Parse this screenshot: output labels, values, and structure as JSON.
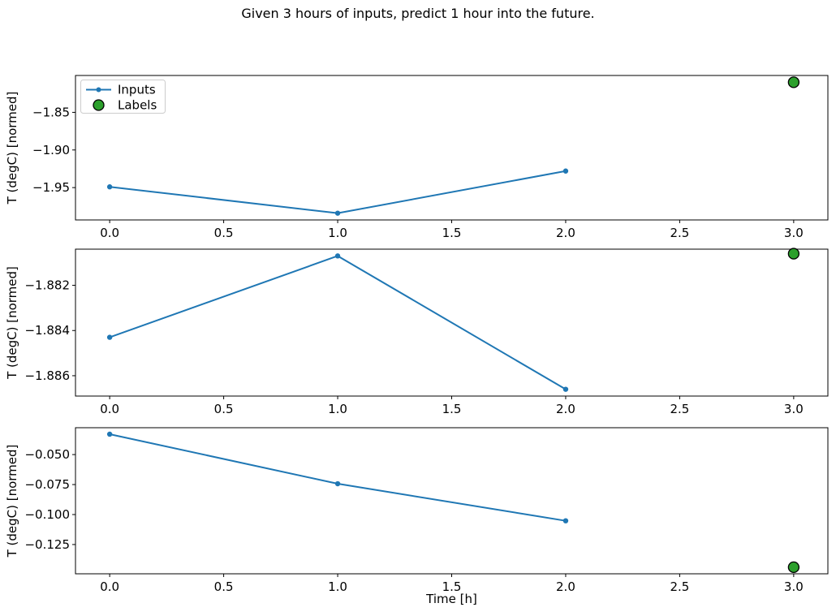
{
  "figure": {
    "title": "Given 3 hours of inputs, predict 1 hour into the future."
  },
  "xaxis": {
    "label": "Time [h]",
    "ticks": [
      {
        "value": 0.0,
        "label": "0.0"
      },
      {
        "value": 0.5,
        "label": "0.5"
      },
      {
        "value": 1.0,
        "label": "1.0"
      },
      {
        "value": 1.5,
        "label": "1.5"
      },
      {
        "value": 2.0,
        "label": "2.0"
      },
      {
        "value": 2.5,
        "label": "2.5"
      },
      {
        "value": 3.0,
        "label": "3.0"
      }
    ]
  },
  "legend": {
    "position": "upper-left-of-first-subplot",
    "entries": [
      {
        "label": "Inputs",
        "marker": "line-with-dot",
        "color": "#1f77b4"
      },
      {
        "label": "Labels",
        "marker": "circle",
        "color": "#2ca02c",
        "edge_color": "#000000"
      }
    ]
  },
  "colors": {
    "inputs_line": "#1f77b4",
    "labels_marker": "#2ca02c",
    "marker_edge": "#000000",
    "axis": "#000000",
    "legend_border": "#cccccc"
  },
  "chart_data": [
    {
      "type": "line",
      "ylabel": "T (degC) [normed]",
      "x": [
        0,
        1,
        2
      ],
      "series": [
        {
          "name": "Inputs",
          "values": [
            -1.949,
            -1.984,
            -1.928
          ]
        }
      ],
      "label_point": {
        "name": "Labels",
        "x": 3,
        "y": -1.81
      },
      "xlim": [
        -0.15,
        3.15
      ],
      "ylim": [
        -1.993,
        -1.801
      ],
      "yticks": [
        {
          "value": -1.95,
          "label": "−1.95"
        },
        {
          "value": -1.9,
          "label": "−1.90"
        },
        {
          "value": -1.85,
          "label": "−1.85"
        }
      ],
      "grid": false,
      "legend": true
    },
    {
      "type": "line",
      "ylabel": "T (degC) [normed]",
      "x": [
        0,
        1,
        2
      ],
      "series": [
        {
          "name": "Inputs",
          "values": [
            -1.8843,
            -1.8807,
            -1.8866
          ]
        }
      ],
      "label_point": {
        "name": "Labels",
        "x": 3,
        "y": -1.8806
      },
      "xlim": [
        -0.15,
        3.15
      ],
      "ylim": [
        -1.8869,
        -1.8804
      ],
      "yticks": [
        {
          "value": -1.886,
          "label": "−1.886"
        },
        {
          "value": -1.884,
          "label": "−1.884"
        },
        {
          "value": -1.882,
          "label": "−1.882"
        }
      ],
      "grid": false,
      "legend": false
    },
    {
      "type": "line",
      "ylabel": "T (degC) [normed]",
      "x": [
        0,
        1,
        2
      ],
      "series": [
        {
          "name": "Inputs",
          "values": [
            -0.033,
            -0.0743,
            -0.1052
          ]
        }
      ],
      "label_point": {
        "name": "Labels",
        "x": 3,
        "y": -0.1439
      },
      "xlim": [
        -0.15,
        3.15
      ],
      "ylim": [
        -0.1494,
        -0.0276
      ],
      "yticks": [
        {
          "value": -0.125,
          "label": "−0.125"
        },
        {
          "value": -0.1,
          "label": "−0.100"
        },
        {
          "value": -0.075,
          "label": "−0.075"
        },
        {
          "value": -0.05,
          "label": "−0.050"
        }
      ],
      "grid": false,
      "legend": false
    }
  ]
}
